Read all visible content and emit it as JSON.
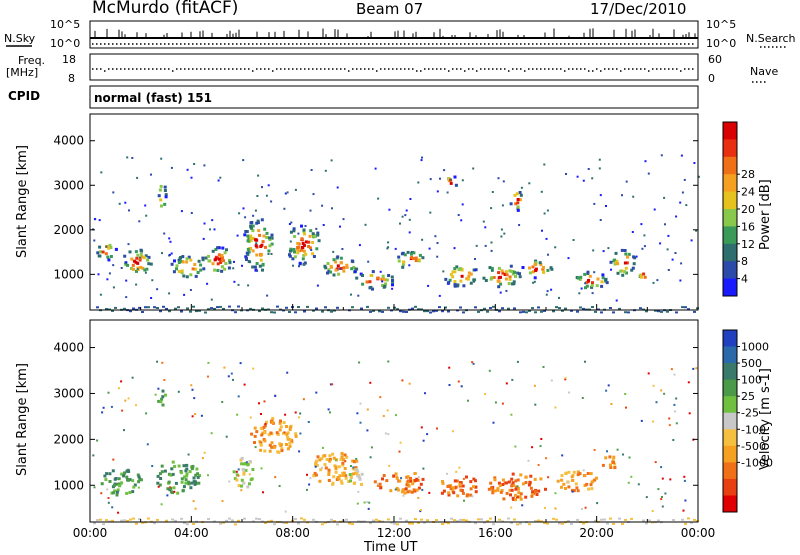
{
  "header": {
    "station": "McMurdo (fitACF)",
    "beam": "Beam 07",
    "date": "17/Dec/2010"
  },
  "panels": {
    "noise": {
      "left_label": "N.Sky",
      "left_ticks": [
        "10^5",
        "10^0"
      ],
      "right_label": "N.Search",
      "right_ticks": [
        "10^5",
        "10^0"
      ]
    },
    "freq": {
      "left_label_1": "Freq.",
      "left_label_2": "[MHz]",
      "left_ticks": [
        "18",
        "8"
      ],
      "right_label": "Nave",
      "right_ticks": [
        "60",
        "0"
      ]
    },
    "cpid": {
      "label": "CPID",
      "value": "normal (fast) 151"
    }
  },
  "chart_data": [
    {
      "type": "heatmap",
      "quantity": "power",
      "ylabel": "Slant Range [km]",
      "yticks": [
        "1000",
        "2000",
        "3000",
        "4000"
      ],
      "ylim": [
        200,
        4600
      ],
      "colorbar": {
        "label": "Power [dB]",
        "ticks": [
          "4",
          "8",
          "12",
          "16",
          "20",
          "24",
          "28"
        ],
        "colors": [
          "#1a1aff",
          "#2b4aaa",
          "#2e6e6e",
          "#3a9a58",
          "#88c84a",
          "#e6c21e",
          "#f5a020",
          "#f07018",
          "#e83010",
          "#d80000"
        ]
      }
    },
    {
      "type": "heatmap",
      "quantity": "velocity",
      "ylabel": "Slant Range [km]",
      "yticks": [
        "1000",
        "2000",
        "3000",
        "4000"
      ],
      "ylim": [
        200,
        4600
      ],
      "xlabel": "Time UT",
      "xticks": [
        "00:00",
        "04:00",
        "08:00",
        "12:00",
        "16:00",
        "20:00",
        "00:00"
      ],
      "colorbar": {
        "label": "Velocity [m s-1]",
        "ticks": [
          "1000",
          "500",
          "100",
          "25",
          "-25",
          "-100",
          "-500",
          "-1000"
        ],
        "colors": [
          "#2040c0",
          "#2a6aaa",
          "#3a7a6a",
          "#4a9a4a",
          "#70c040",
          "#c8c8c8",
          "#f5c040",
          "#f5a020",
          "#f07018",
          "#e84010",
          "#e00000"
        ]
      }
    }
  ]
}
